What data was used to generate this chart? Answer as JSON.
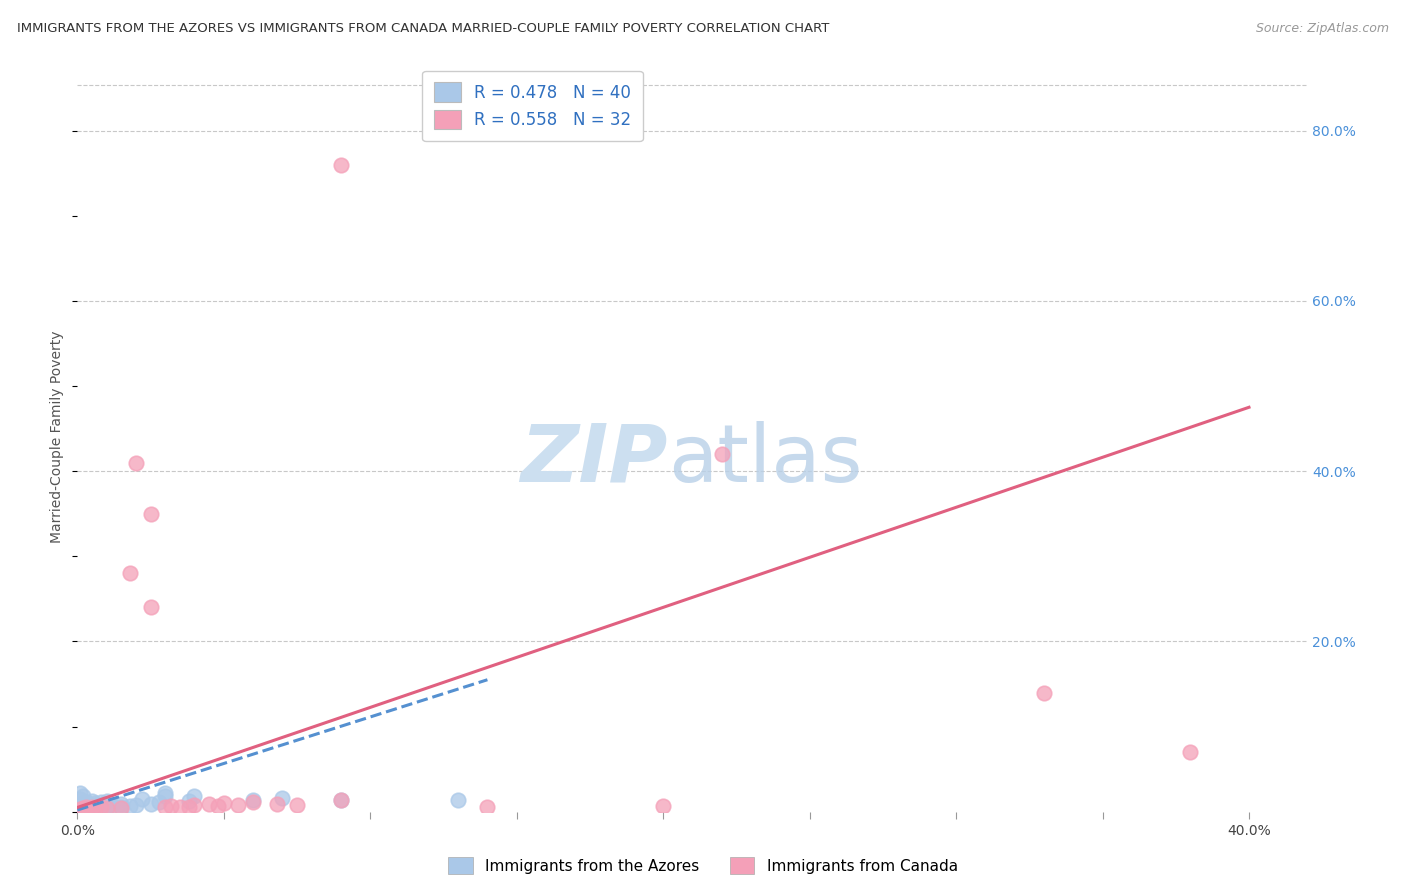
{
  "title": "IMMIGRANTS FROM THE AZORES VS IMMIGRANTS FROM CANADA MARRIED-COUPLE FAMILY POVERTY CORRELATION CHART",
  "source": "Source: ZipAtlas.com",
  "ylabel": "Married-Couple Family Poverty",
  "xlim": [
    0.0,
    0.42
  ],
  "ylim": [
    0.0,
    0.88
  ],
  "xticks": [
    0.0,
    0.05,
    0.1,
    0.15,
    0.2,
    0.25,
    0.3,
    0.35,
    0.4
  ],
  "xticklabels": [
    "0.0%",
    "",
    "",
    "",
    "",
    "",
    "",
    "",
    "40.0%"
  ],
  "yticks_right": [
    0.0,
    0.2,
    0.4,
    0.6,
    0.8
  ],
  "ytick_labels_right": [
    "",
    "20.0%",
    "40.0%",
    "60.0%",
    "80.0%"
  ],
  "background_color": "#ffffff",
  "grid_color": "#c8c8c8",
  "azores_color": "#aac8e8",
  "canada_color": "#f4a0b8",
  "azores_R": 0.478,
  "azores_N": 40,
  "canada_R": 0.558,
  "canada_N": 32,
  "azores_line_color": "#5590d0",
  "canada_line_color": "#e06080",
  "legend_text_color": "#3070c0",
  "azores_points": [
    [
      0.001,
      0.005
    ],
    [
      0.001,
      0.008
    ],
    [
      0.001,
      0.015
    ],
    [
      0.001,
      0.022
    ],
    [
      0.002,
      0.003
    ],
    [
      0.002,
      0.006
    ],
    [
      0.002,
      0.01
    ],
    [
      0.002,
      0.018
    ],
    [
      0.003,
      0.004
    ],
    [
      0.003,
      0.008
    ],
    [
      0.003,
      0.012
    ],
    [
      0.004,
      0.005
    ],
    [
      0.004,
      0.009
    ],
    [
      0.005,
      0.003
    ],
    [
      0.005,
      0.007
    ],
    [
      0.005,
      0.013
    ],
    [
      0.006,
      0.005
    ],
    [
      0.006,
      0.01
    ],
    [
      0.007,
      0.004
    ],
    [
      0.007,
      0.008
    ],
    [
      0.008,
      0.006
    ],
    [
      0.008,
      0.012
    ],
    [
      0.01,
      0.007
    ],
    [
      0.01,
      0.013
    ],
    [
      0.012,
      0.008
    ],
    [
      0.015,
      0.006
    ],
    [
      0.015,
      0.009
    ],
    [
      0.018,
      0.007
    ],
    [
      0.02,
      0.008
    ],
    [
      0.022,
      0.015
    ],
    [
      0.025,
      0.009
    ],
    [
      0.028,
      0.012
    ],
    [
      0.03,
      0.019
    ],
    [
      0.03,
      0.022
    ],
    [
      0.038,
      0.013
    ],
    [
      0.04,
      0.018
    ],
    [
      0.06,
      0.014
    ],
    [
      0.07,
      0.016
    ],
    [
      0.09,
      0.014
    ],
    [
      0.13,
      0.014
    ]
  ],
  "canada_points": [
    [
      0.001,
      0.003
    ],
    [
      0.002,
      0.004
    ],
    [
      0.003,
      0.005
    ],
    [
      0.004,
      0.003
    ],
    [
      0.005,
      0.005
    ],
    [
      0.006,
      0.004
    ],
    [
      0.008,
      0.006
    ],
    [
      0.01,
      0.004
    ],
    [
      0.015,
      0.004
    ],
    [
      0.09,
      0.76
    ],
    [
      0.02,
      0.41
    ],
    [
      0.025,
      0.35
    ],
    [
      0.018,
      0.28
    ],
    [
      0.025,
      0.24
    ],
    [
      0.03,
      0.005
    ],
    [
      0.032,
      0.007
    ],
    [
      0.035,
      0.006
    ],
    [
      0.038,
      0.005
    ],
    [
      0.04,
      0.008
    ],
    [
      0.045,
      0.009
    ],
    [
      0.048,
      0.007
    ],
    [
      0.05,
      0.01
    ],
    [
      0.055,
      0.008
    ],
    [
      0.06,
      0.012
    ],
    [
      0.068,
      0.009
    ],
    [
      0.075,
      0.008
    ],
    [
      0.09,
      0.014
    ],
    [
      0.14,
      0.006
    ],
    [
      0.2,
      0.007
    ],
    [
      0.22,
      0.42
    ],
    [
      0.33,
      0.14
    ],
    [
      0.38,
      0.07
    ]
  ],
  "azores_trend_x": [
    0.0,
    0.14
  ],
  "azores_trend_y": [
    0.002,
    0.155
  ],
  "canada_trend_x": [
    0.0,
    0.4
  ],
  "canada_trend_y": [
    0.005,
    0.475
  ]
}
